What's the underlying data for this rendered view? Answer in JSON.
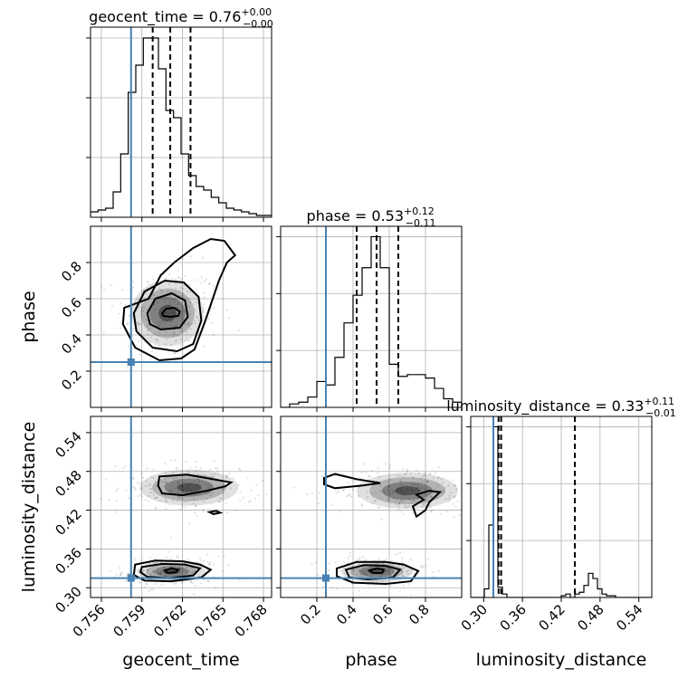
{
  "chart_data": {
    "type": "corner",
    "parameters": [
      "geocent_time",
      "phase",
      "luminosity_distance"
    ],
    "truths": {
      "geocent_time": 0.7582,
      "phase": 0.25,
      "luminosity_distance": 0.315
    },
    "panels": {
      "geocent_time": {
        "title_base": "geocent_time = 0.76",
        "title_sup": "+0.00",
        "title_sub": "−0.00",
        "quantiles": [
          0.7598,
          0.7611,
          0.7626
        ],
        "xlim": [
          0.7552,
          0.7686
        ],
        "ticks": [
          0.756,
          0.759,
          0.762,
          0.765,
          0.768
        ],
        "tick_labels": [
          "0.756",
          "0.759",
          "0.762",
          "0.765",
          "0.768"
        ],
        "hist_heights": [
          0.03,
          0.04,
          0.05,
          0.14,
          0.35,
          0.69,
          0.84,
          0.99,
          0.99,
          0.82,
          0.59,
          0.55,
          0.35,
          0.23,
          0.17,
          0.15,
          0.11,
          0.08,
          0.05,
          0.04,
          0.03,
          0.02,
          0.01,
          0.01
        ]
      },
      "phase": {
        "title_base": "phase = 0.53",
        "title_sup": "+0.12",
        "title_sub": "−0.11",
        "quantiles": [
          0.42,
          0.53,
          0.65
        ],
        "xlim": [
          0.0,
          1.0
        ],
        "ylim": [
          0.0,
          1.0
        ],
        "ticks": [
          0.2,
          0.4,
          0.6,
          0.8
        ],
        "tick_labels": [
          "0.2",
          "0.4",
          "0.6",
          "0.8"
        ],
        "hist_heights": [
          0.0,
          0.02,
          0.03,
          0.06,
          0.15,
          0.13,
          0.29,
          0.49,
          0.65,
          0.81,
          0.99,
          0.81,
          0.25,
          0.18,
          0.19,
          0.19,
          0.17,
          0.11,
          0.05,
          0.03
        ]
      },
      "luminosity_distance": {
        "title_base": "luminosity_distance = 0.33",
        "title_sup": "+0.11",
        "title_sub": "−0.01",
        "quantiles": [
          0.323,
          0.327,
          0.441
        ],
        "xlim": [
          0.28,
          0.56
        ],
        "ylim": [
          0.285,
          0.565
        ],
        "ticks": [
          0.3,
          0.36,
          0.42,
          0.48,
          0.54
        ],
        "tick_labels": [
          "0.30",
          "0.36",
          "0.42",
          "0.48",
          "0.54"
        ],
        "hist_heights": [
          0.0,
          0.0,
          0.0,
          0.05,
          0.42,
          0.99,
          0.06,
          0.02,
          0.0,
          0.0,
          0.0,
          0.0,
          0.0,
          0.0,
          0.0,
          0.0,
          0.0,
          0.0,
          0.0,
          0.0,
          0.01,
          0.02,
          0.0,
          0.02,
          0.03,
          0.07,
          0.14,
          0.11,
          0.05,
          0.02,
          0.01,
          0.01,
          0.0,
          0.0,
          0.0,
          0.0,
          0.0,
          0.0,
          0.0,
          0.0
        ]
      }
    },
    "density_modes": [
      {
        "panel": "phase_vs_geocent_time",
        "center": [
          0.7609,
          0.52
        ],
        "spread": [
          0.0019,
          0.13
        ]
      },
      {
        "panel": "lumdist_vs_geocent_time",
        "center": [
          0.7612,
          0.325
        ],
        "spread": [
          0.0018,
          0.012
        ]
      },
      {
        "panel": "lumdist_vs_geocent_time",
        "center": [
          0.7625,
          0.455
        ],
        "spread": [
          0.0026,
          0.02
        ]
      },
      {
        "panel": "lumdist_vs_phase",
        "center": [
          0.53,
          0.325
        ],
        "spread": [
          0.14,
          0.012
        ]
      },
      {
        "panel": "lumdist_vs_phase",
        "center": [
          0.7,
          0.45
        ],
        "spread": [
          0.2,
          0.02
        ]
      }
    ],
    "contours": {
      "phase_vs_geocent_time": [
        [
          [
            0.7595,
            0.6
          ],
          [
            0.7604,
            0.73
          ],
          [
            0.7614,
            0.8
          ],
          [
            0.7628,
            0.88
          ],
          [
            0.7641,
            0.93
          ],
          [
            0.7651,
            0.92
          ],
          [
            0.7659,
            0.84
          ],
          [
            0.7653,
            0.8
          ],
          [
            0.7647,
            0.7
          ],
          [
            0.7637,
            0.48
          ],
          [
            0.7629,
            0.32
          ],
          [
            0.7619,
            0.27
          ],
          [
            0.7603,
            0.26
          ],
          [
            0.7585,
            0.33
          ],
          [
            0.7576,
            0.46
          ],
          [
            0.7577,
            0.55
          ]
        ],
        [
          [
            0.7584,
            0.52
          ],
          [
            0.7592,
            0.64
          ],
          [
            0.7607,
            0.7
          ],
          [
            0.7621,
            0.69
          ],
          [
            0.7632,
            0.61
          ],
          [
            0.7634,
            0.48
          ],
          [
            0.7628,
            0.35
          ],
          [
            0.7616,
            0.31
          ],
          [
            0.7598,
            0.33
          ],
          [
            0.7586,
            0.42
          ]
        ],
        [
          [
            0.7594,
            0.52
          ],
          [
            0.76,
            0.6
          ],
          [
            0.7612,
            0.63
          ],
          [
            0.7622,
            0.59
          ],
          [
            0.7624,
            0.5
          ],
          [
            0.7618,
            0.44
          ],
          [
            0.7604,
            0.43
          ],
          [
            0.7596,
            0.46
          ]
        ],
        [
          [
            0.7605,
            0.52
          ],
          [
            0.7608,
            0.545
          ],
          [
            0.7614,
            0.55
          ],
          [
            0.7618,
            0.53
          ],
          [
            0.7617,
            0.505
          ],
          [
            0.7611,
            0.5
          ],
          [
            0.7606,
            0.505
          ]
        ]
      ],
      "lumdist_vs_geocent_time": [
        [
          [
            0.7585,
            0.336
          ],
          [
            0.76,
            0.342
          ],
          [
            0.762,
            0.341
          ],
          [
            0.7633,
            0.336
          ],
          [
            0.7641,
            0.328
          ],
          [
            0.7634,
            0.316
          ],
          [
            0.7612,
            0.31
          ],
          [
            0.7592,
            0.311
          ],
          [
            0.7584,
            0.32
          ]
        ],
        [
          [
            0.759,
            0.332
          ],
          [
            0.7605,
            0.337
          ],
          [
            0.7622,
            0.336
          ],
          [
            0.7633,
            0.33
          ],
          [
            0.7628,
            0.319
          ],
          [
            0.761,
            0.315
          ],
          [
            0.7594,
            0.317
          ],
          [
            0.7589,
            0.324
          ]
        ],
        [
          [
            0.7607,
            0.327
          ],
          [
            0.7612,
            0.33
          ],
          [
            0.7617,
            0.328
          ],
          [
            0.7615,
            0.324
          ],
          [
            0.7609,
            0.323
          ]
        ],
        [
          [
            0.7603,
            0.472
          ],
          [
            0.7623,
            0.475
          ],
          [
            0.764,
            0.469
          ],
          [
            0.7656,
            0.463
          ],
          [
            0.7652,
            0.457
          ],
          [
            0.7638,
            0.45
          ],
          [
            0.762,
            0.443
          ],
          [
            0.7605,
            0.446
          ],
          [
            0.7602,
            0.458
          ]
        ],
        [
          [
            0.764,
            0.417
          ],
          [
            0.7645,
            0.419
          ],
          [
            0.7648,
            0.416
          ],
          [
            0.7643,
            0.414
          ]
        ]
      ],
      "lumdist_vs_phase": [
        [
          [
            0.24,
            0.47
          ],
          [
            0.3,
            0.476
          ],
          [
            0.42,
            0.468
          ],
          [
            0.55,
            0.462
          ],
          [
            0.45,
            0.458
          ],
          [
            0.3,
            0.454
          ],
          [
            0.24,
            0.46
          ]
        ],
        [
          [
            0.75,
            0.444
          ],
          [
            0.82,
            0.45
          ],
          [
            0.88,
            0.448
          ],
          [
            0.82,
            0.432
          ],
          [
            0.8,
            0.42
          ],
          [
            0.75,
            0.41
          ],
          [
            0.73,
            0.426
          ],
          [
            0.79,
            0.436
          ]
        ],
        [
          [
            0.31,
            0.33
          ],
          [
            0.42,
            0.34
          ],
          [
            0.58,
            0.34
          ],
          [
            0.68,
            0.336
          ],
          [
            0.76,
            0.326
          ],
          [
            0.72,
            0.31
          ],
          [
            0.58,
            0.306
          ],
          [
            0.4,
            0.308
          ],
          [
            0.31,
            0.318
          ]
        ],
        [
          [
            0.36,
            0.328
          ],
          [
            0.46,
            0.335
          ],
          [
            0.58,
            0.334
          ],
          [
            0.66,
            0.328
          ],
          [
            0.62,
            0.316
          ],
          [
            0.48,
            0.313
          ],
          [
            0.38,
            0.316
          ]
        ],
        [
          [
            0.49,
            0.327
          ],
          [
            0.53,
            0.33
          ],
          [
            0.57,
            0.328
          ],
          [
            0.56,
            0.323
          ],
          [
            0.51,
            0.323
          ]
        ]
      ]
    }
  }
}
